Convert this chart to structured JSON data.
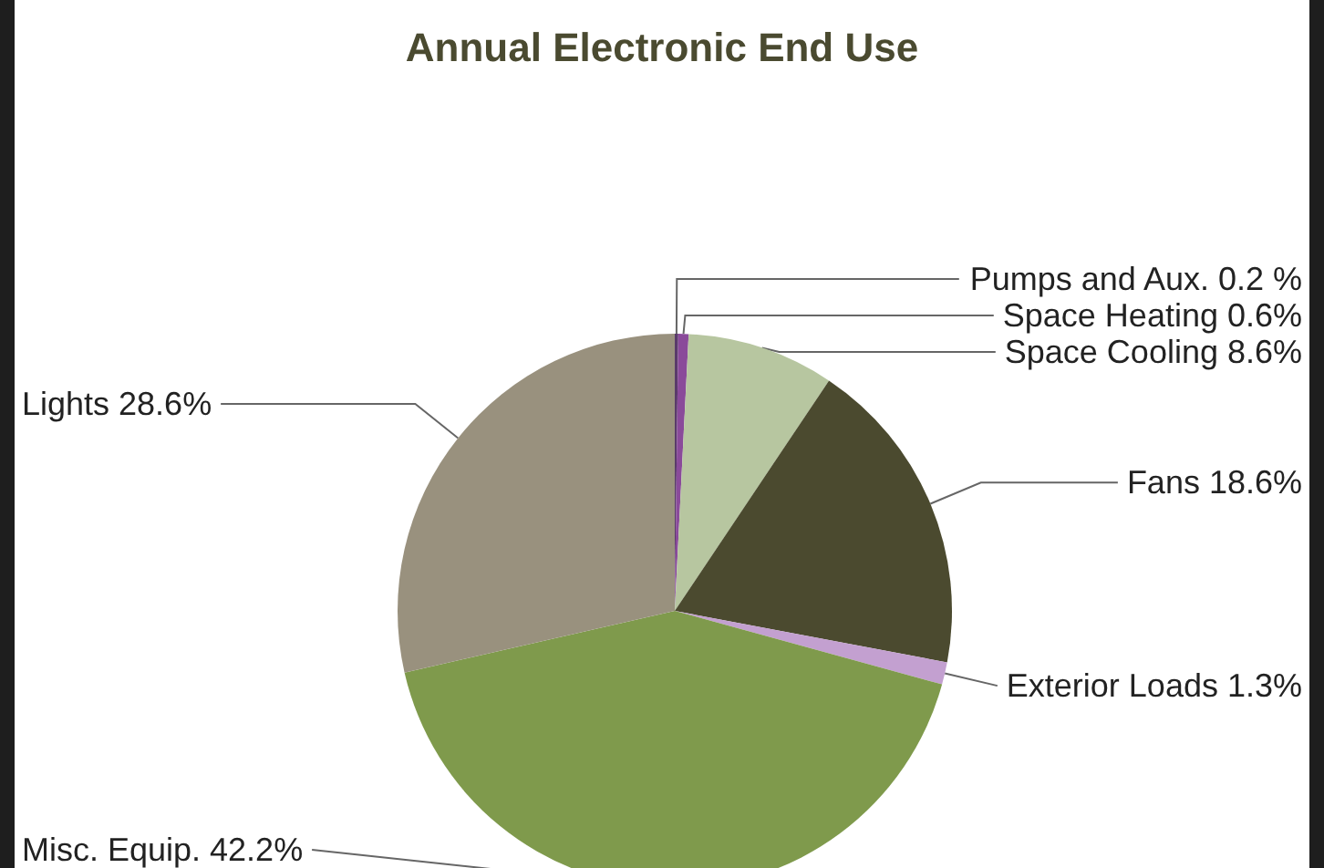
{
  "chart_data": {
    "type": "pie",
    "title": "Annual Electronic End Use",
    "categories": [
      "Pumps and Aux.",
      "Space Heating",
      "Space Cooling",
      "Fans",
      "Exterior Loads",
      "Misc. Equip.",
      "Lights"
    ],
    "values": [
      0.2,
      0.6,
      8.6,
      18.6,
      1.3,
      42.2,
      28.6
    ],
    "value_labels": [
      "0.2 %",
      "0.6%",
      "8.6%",
      "18.6%",
      "1.3%",
      "42.2%",
      "28.6%"
    ],
    "colors": [
      "#5a3a6a",
      "#8a4a9a",
      "#b7c6a0",
      "#4b4a2f",
      "#c3a0d0",
      "#7f9a4c",
      "#99917e"
    ]
  }
}
